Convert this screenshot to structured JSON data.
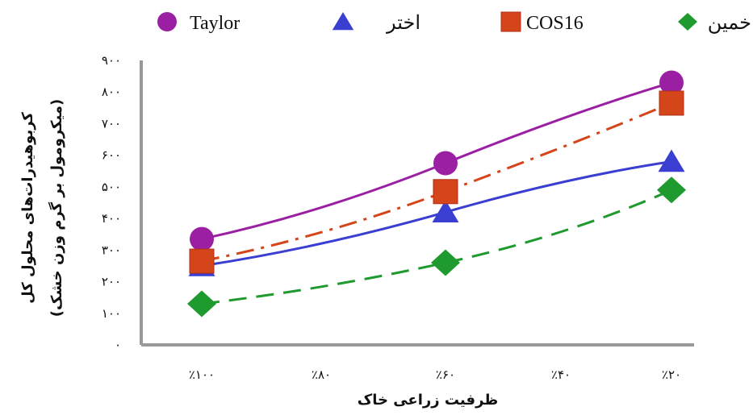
{
  "chart_data": {
    "type": "line",
    "title": "",
    "xlabel": "ظرفیت زراعی خاک",
    "ylabel_line1": "کربوهیدرات‌های محلول کل",
    "ylabel_line2": "(میکرومول بر گرم وزن خشک)",
    "categories": [
      "٪۱۰۰",
      "٪۸۰",
      "٪۶۰",
      "٪۴۰",
      "٪۲۰"
    ],
    "ylim": [
      0,
      900
    ],
    "yticks": [
      "۰",
      "۱۰۰",
      "۲۰۰",
      "۳۰۰",
      "۴۰۰",
      "۵۰۰",
      "۶۰۰",
      "۷۰۰",
      "۸۰۰",
      "۹۰۰"
    ],
    "legend_position": "top",
    "series": [
      {
        "name": "Taylor",
        "color": "#9b1fa3",
        "marker": "circle",
        "line": "solid",
        "points": [
          {
            "x": "٪۱۰۰",
            "y": 335
          },
          {
            "x": "٪۶۰",
            "y": 575
          },
          {
            "x": "٪۲۰",
            "y": 830
          }
        ]
      },
      {
        "name": "اختر",
        "color": "#3a3fd1",
        "marker": "triangle",
        "line": "solid",
        "points": [
          {
            "x": "٪۱۰۰",
            "y": 250
          },
          {
            "x": "٪۶۰",
            "y": 420
          },
          {
            "x": "٪۲۰",
            "y": 580
          }
        ]
      },
      {
        "name": "COS16",
        "color": "#d4451a",
        "marker": "square",
        "line": "dashdot",
        "points": [
          {
            "x": "٪۱۰۰",
            "y": 265
          },
          {
            "x": "٪۶۰",
            "y": 485
          },
          {
            "x": "٪۲۰",
            "y": 765
          }
        ]
      },
      {
        "name": "خمین",
        "color": "#1f9a2e",
        "marker": "diamond",
        "line": "dashed",
        "points": [
          {
            "x": "٪۱۰۰",
            "y": 130
          },
          {
            "x": "٪۶۰",
            "y": 260
          },
          {
            "x": "٪۲۰",
            "y": 490
          }
        ]
      }
    ]
  }
}
